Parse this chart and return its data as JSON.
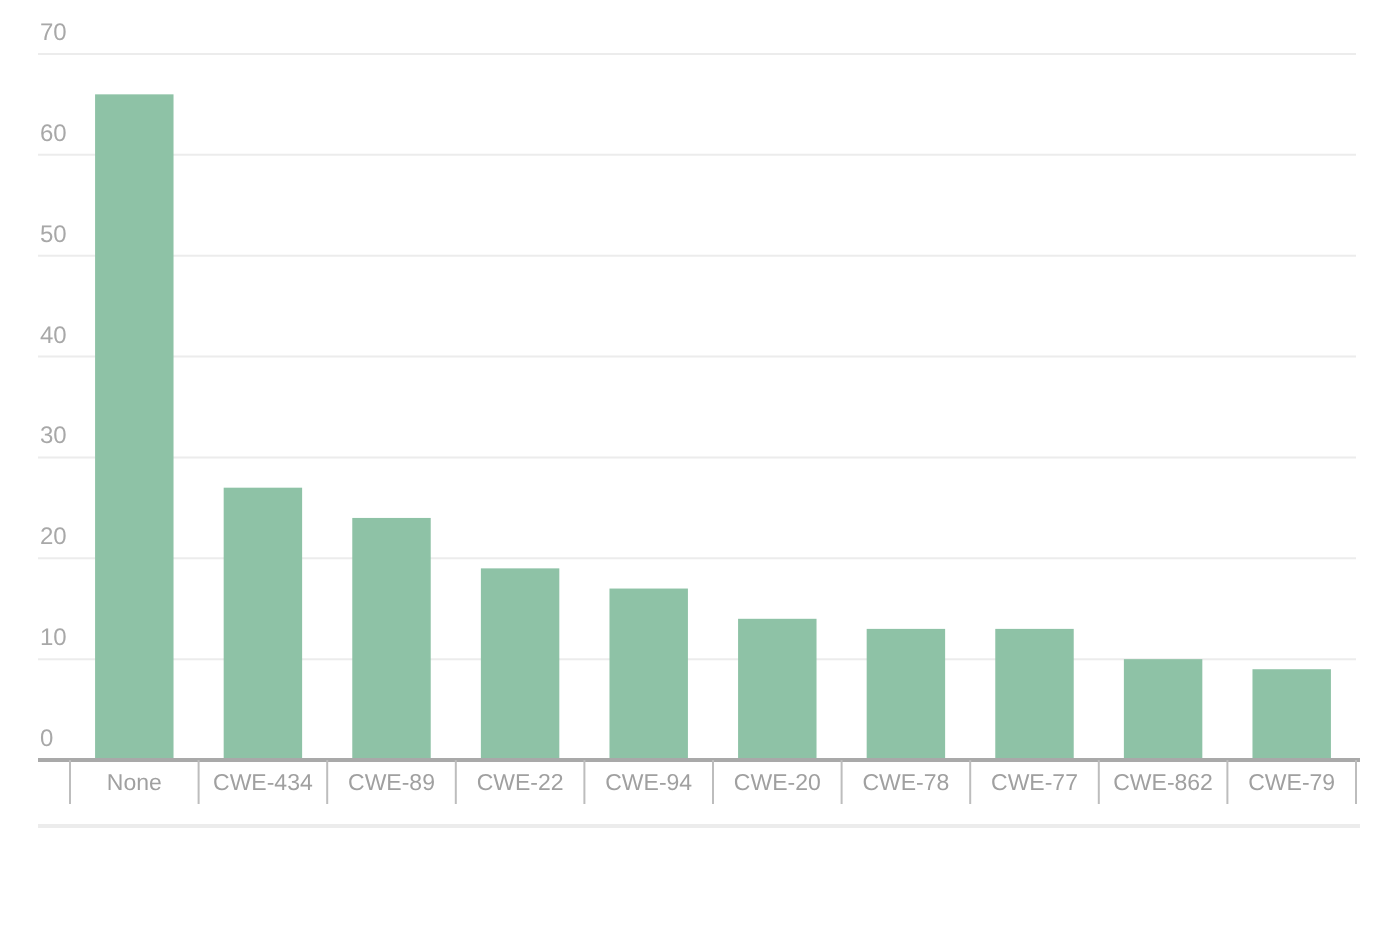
{
  "chart_data": {
    "type": "bar",
    "categories": [
      "None",
      "CWE-434",
      "CWE-89",
      "CWE-22",
      "CWE-94",
      "CWE-20",
      "CWE-78",
      "CWE-77",
      "CWE-862",
      "CWE-79"
    ],
    "values": [
      66,
      27,
      24,
      19,
      17,
      14,
      13,
      13,
      10,
      9
    ],
    "color": "#8ec2a6",
    "ylim": [
      0,
      70
    ],
    "yticks": [
      0,
      10,
      20,
      30,
      40,
      50,
      60,
      70
    ],
    "grid": "y"
  }
}
